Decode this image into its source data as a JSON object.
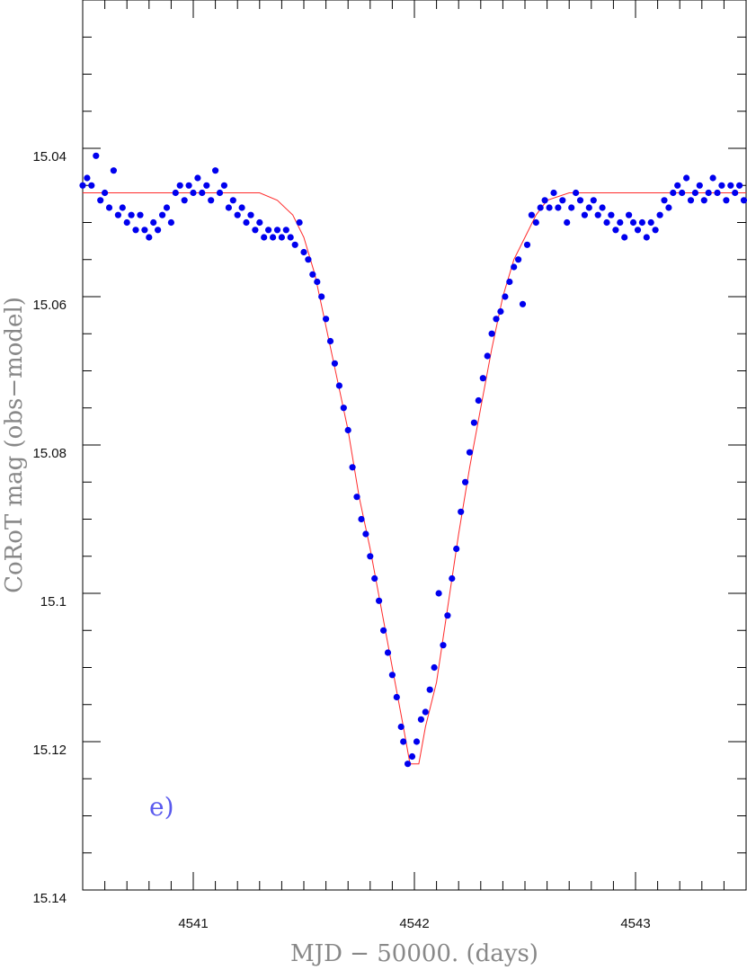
{
  "chart_data": {
    "type": "scatter",
    "title": "",
    "xlabel": "MJD − 50000. (days)",
    "ylabel": "CoRoT mag (obs−model)",
    "xlim": [
      4540.5,
      4543.5
    ],
    "ylim": [
      15.14,
      15.02
    ],
    "y_inverted": true,
    "x_ticks": [
      4541,
      4542,
      4543
    ],
    "x_tick_labels": [
      "4541",
      "4542",
      "4543"
    ],
    "y_ticks": [
      15.04,
      15.06,
      15.08,
      15.1,
      15.12,
      15.14
    ],
    "y_tick_labels": [
      "15.04",
      "15.06",
      "15.08",
      "15.1",
      "15.12",
      "15.14"
    ],
    "grid": false,
    "legend": "none",
    "annotation": "e)",
    "colors": {
      "points": "#0000ee",
      "model": "#ff2a2a",
      "annotation": "#5a5aee",
      "axis_title": "#888888"
    },
    "series": [
      {
        "kind": "scatter",
        "points": [
          [
            4540.5,
            15.045
          ],
          [
            4540.52,
            15.044
          ],
          [
            4540.54,
            15.045
          ],
          [
            4540.56,
            15.041
          ],
          [
            4540.58,
            15.047
          ],
          [
            4540.6,
            15.046
          ],
          [
            4540.62,
            15.048
          ],
          [
            4540.64,
            15.043
          ],
          [
            4540.66,
            15.049
          ],
          [
            4540.68,
            15.048
          ],
          [
            4540.7,
            15.05
          ],
          [
            4540.72,
            15.049
          ],
          [
            4540.74,
            15.051
          ],
          [
            4540.76,
            15.049
          ],
          [
            4540.78,
            15.051
          ],
          [
            4540.8,
            15.052
          ],
          [
            4540.82,
            15.05
          ],
          [
            4540.84,
            15.051
          ],
          [
            4540.86,
            15.049
          ],
          [
            4540.88,
            15.048
          ],
          [
            4540.9,
            15.05
          ],
          [
            4540.92,
            15.046
          ],
          [
            4540.94,
            15.045
          ],
          [
            4540.96,
            15.047
          ],
          [
            4540.98,
            15.045
          ],
          [
            4541.0,
            15.046
          ],
          [
            4541.02,
            15.044
          ],
          [
            4541.04,
            15.046
          ],
          [
            4541.06,
            15.045
          ],
          [
            4541.08,
            15.047
          ],
          [
            4541.1,
            15.043
          ],
          [
            4541.12,
            15.046
          ],
          [
            4541.14,
            15.045
          ],
          [
            4541.16,
            15.048
          ],
          [
            4541.18,
            15.047
          ],
          [
            4541.2,
            15.049
          ],
          [
            4541.22,
            15.048
          ],
          [
            4541.24,
            15.05
          ],
          [
            4541.26,
            15.049
          ],
          [
            4541.28,
            15.051
          ],
          [
            4541.3,
            15.05
          ],
          [
            4541.32,
            15.052
          ],
          [
            4541.34,
            15.051
          ],
          [
            4541.36,
            15.052
          ],
          [
            4541.38,
            15.051
          ],
          [
            4541.4,
            15.052
          ],
          [
            4541.42,
            15.051
          ],
          [
            4541.44,
            15.052
          ],
          [
            4541.46,
            15.053
          ],
          [
            4541.48,
            15.05
          ],
          [
            4541.5,
            15.054
          ],
          [
            4541.52,
            15.055
          ],
          [
            4541.54,
            15.057
          ],
          [
            4541.56,
            15.058
          ],
          [
            4541.58,
            15.06
          ],
          [
            4541.6,
            15.063
          ],
          [
            4541.62,
            15.066
          ],
          [
            4541.64,
            15.069
          ],
          [
            4541.66,
            15.072
          ],
          [
            4541.68,
            15.075
          ],
          [
            4541.7,
            15.078
          ],
          [
            4541.72,
            15.083
          ],
          [
            4541.74,
            15.087
          ],
          [
            4541.76,
            15.09
          ],
          [
            4541.78,
            15.092
          ],
          [
            4541.8,
            15.095
          ],
          [
            4541.82,
            15.098
          ],
          [
            4541.84,
            15.101
          ],
          [
            4541.86,
            15.105
          ],
          [
            4541.88,
            15.108
          ],
          [
            4541.9,
            15.111
          ],
          [
            4541.92,
            15.114
          ],
          [
            4541.94,
            15.118
          ],
          [
            4541.95,
            15.12
          ],
          [
            4541.97,
            15.123
          ],
          [
            4541.99,
            15.122
          ],
          [
            4542.01,
            15.12
          ],
          [
            4542.03,
            15.117
          ],
          [
            4542.05,
            15.116
          ],
          [
            4542.07,
            15.113
          ],
          [
            4542.09,
            15.11
          ],
          [
            4542.11,
            15.1
          ],
          [
            4542.13,
            15.107
          ],
          [
            4542.15,
            15.103
          ],
          [
            4542.17,
            15.098
          ],
          [
            4542.19,
            15.094
          ],
          [
            4542.21,
            15.089
          ],
          [
            4542.23,
            15.085
          ],
          [
            4542.25,
            15.081
          ],
          [
            4542.27,
            15.077
          ],
          [
            4542.29,
            15.074
          ],
          [
            4542.31,
            15.071
          ],
          [
            4542.33,
            15.068
          ],
          [
            4542.35,
            15.065
          ],
          [
            4542.37,
            15.063
          ],
          [
            4542.39,
            15.062
          ],
          [
            4542.41,
            15.06
          ],
          [
            4542.43,
            15.058
          ],
          [
            4542.45,
            15.056
          ],
          [
            4542.47,
            15.055
          ],
          [
            4542.49,
            15.061
          ],
          [
            4542.51,
            15.053
          ],
          [
            4542.53,
            15.049
          ],
          [
            4542.55,
            15.05
          ],
          [
            4542.57,
            15.048
          ],
          [
            4542.59,
            15.047
          ],
          [
            4542.61,
            15.048
          ],
          [
            4542.63,
            15.046
          ],
          [
            4542.65,
            15.048
          ],
          [
            4542.67,
            15.047
          ],
          [
            4542.69,
            15.05
          ],
          [
            4542.71,
            15.048
          ],
          [
            4542.73,
            15.046
          ],
          [
            4542.75,
            15.047
          ],
          [
            4542.77,
            15.049
          ],
          [
            4542.79,
            15.048
          ],
          [
            4542.81,
            15.047
          ],
          [
            4542.83,
            15.049
          ],
          [
            4542.85,
            15.048
          ],
          [
            4542.87,
            15.05
          ],
          [
            4542.89,
            15.049
          ],
          [
            4542.91,
            15.051
          ],
          [
            4542.93,
            15.05
          ],
          [
            4542.95,
            15.052
          ],
          [
            4542.97,
            15.049
          ],
          [
            4542.99,
            15.05
          ],
          [
            4543.01,
            15.051
          ],
          [
            4543.03,
            15.05
          ],
          [
            4543.05,
            15.052
          ],
          [
            4543.07,
            15.05
          ],
          [
            4543.09,
            15.051
          ],
          [
            4543.11,
            15.049
          ],
          [
            4543.13,
            15.047
          ],
          [
            4543.15,
            15.048
          ],
          [
            4543.17,
            15.046
          ],
          [
            4543.19,
            15.045
          ],
          [
            4543.21,
            15.046
          ],
          [
            4543.23,
            15.044
          ],
          [
            4543.25,
            15.047
          ],
          [
            4543.27,
            15.046
          ],
          [
            4543.29,
            15.045
          ],
          [
            4543.31,
            15.047
          ],
          [
            4543.33,
            15.046
          ],
          [
            4543.35,
            15.044
          ],
          [
            4543.37,
            15.046
          ],
          [
            4543.39,
            15.045
          ],
          [
            4543.41,
            15.047
          ],
          [
            4543.43,
            15.045
          ],
          [
            4543.45,
            15.046
          ],
          [
            4543.47,
            15.045
          ],
          [
            4543.49,
            15.047
          ]
        ]
      },
      {
        "kind": "line",
        "points": [
          [
            4540.5,
            15.046
          ],
          [
            4541.3,
            15.046
          ],
          [
            4541.38,
            15.047
          ],
          [
            4541.45,
            15.049
          ],
          [
            4541.5,
            15.052
          ],
          [
            4541.55,
            15.057
          ],
          [
            4541.6,
            15.064
          ],
          [
            4541.65,
            15.071
          ],
          [
            4541.7,
            15.078
          ],
          [
            4541.75,
            15.087
          ],
          [
            4541.8,
            15.094
          ],
          [
            4541.85,
            15.102
          ],
          [
            4541.9,
            15.11
          ],
          [
            4541.95,
            15.118
          ],
          [
            4541.98,
            15.123
          ],
          [
            4542.02,
            15.123
          ],
          [
            4542.05,
            15.118
          ],
          [
            4542.1,
            15.112
          ],
          [
            4542.15,
            15.102
          ],
          [
            4542.2,
            15.092
          ],
          [
            4542.25,
            15.083
          ],
          [
            4542.3,
            15.075
          ],
          [
            4542.35,
            15.067
          ],
          [
            4542.4,
            15.06
          ],
          [
            4542.45,
            15.055
          ],
          [
            4542.5,
            15.052
          ],
          [
            4542.55,
            15.049
          ],
          [
            4542.6,
            15.047
          ],
          [
            4542.7,
            15.046
          ],
          [
            4543.5,
            15.046
          ]
        ]
      }
    ]
  }
}
